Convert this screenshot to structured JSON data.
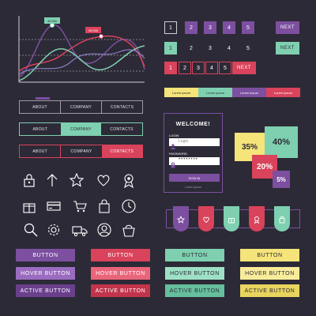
{
  "chart": {
    "tooltip1": "49.000",
    "tooltip2": "49.000"
  },
  "pagination": {
    "row1": [
      "1",
      "2",
      "3",
      "4",
      "5"
    ],
    "row2": [
      "1",
      "2",
      "3",
      "4",
      "5"
    ],
    "row3": [
      "1",
      "2",
      "3",
      "4",
      "5"
    ],
    "next": "NEXT"
  },
  "steps": [
    "Lorem ipsum",
    "Lorem ipsum",
    "Lorem ipsum",
    "Lorem ipsum"
  ],
  "navbars": [
    [
      "ABOUT",
      "COMPANY",
      "CONTACTS"
    ],
    [
      "ABOUT",
      "COMPANY",
      "CONTACTS"
    ],
    [
      "ABOUT",
      "COMPANY",
      "CONTACTS"
    ]
  ],
  "login": {
    "title": "WELCOME!",
    "login_label": "LOGIN",
    "login_value": "Login",
    "password_label": "PASSWORD",
    "password_value": "••••••••",
    "signin": "SIGN IN",
    "link": "Lorem ipsum"
  },
  "percent_tags": [
    "35%",
    "40%",
    "20%",
    "5%"
  ],
  "buttons": {
    "normal": "BUTTON",
    "hover": "HOVER BUTTON",
    "active": "ACTIVE BUTTON"
  },
  "colors": {
    "bg": "#2c2a36",
    "purple": "#7c4fa0",
    "red": "#d9435b",
    "green": "#7ed0b0",
    "yellow": "#f4e47a"
  }
}
